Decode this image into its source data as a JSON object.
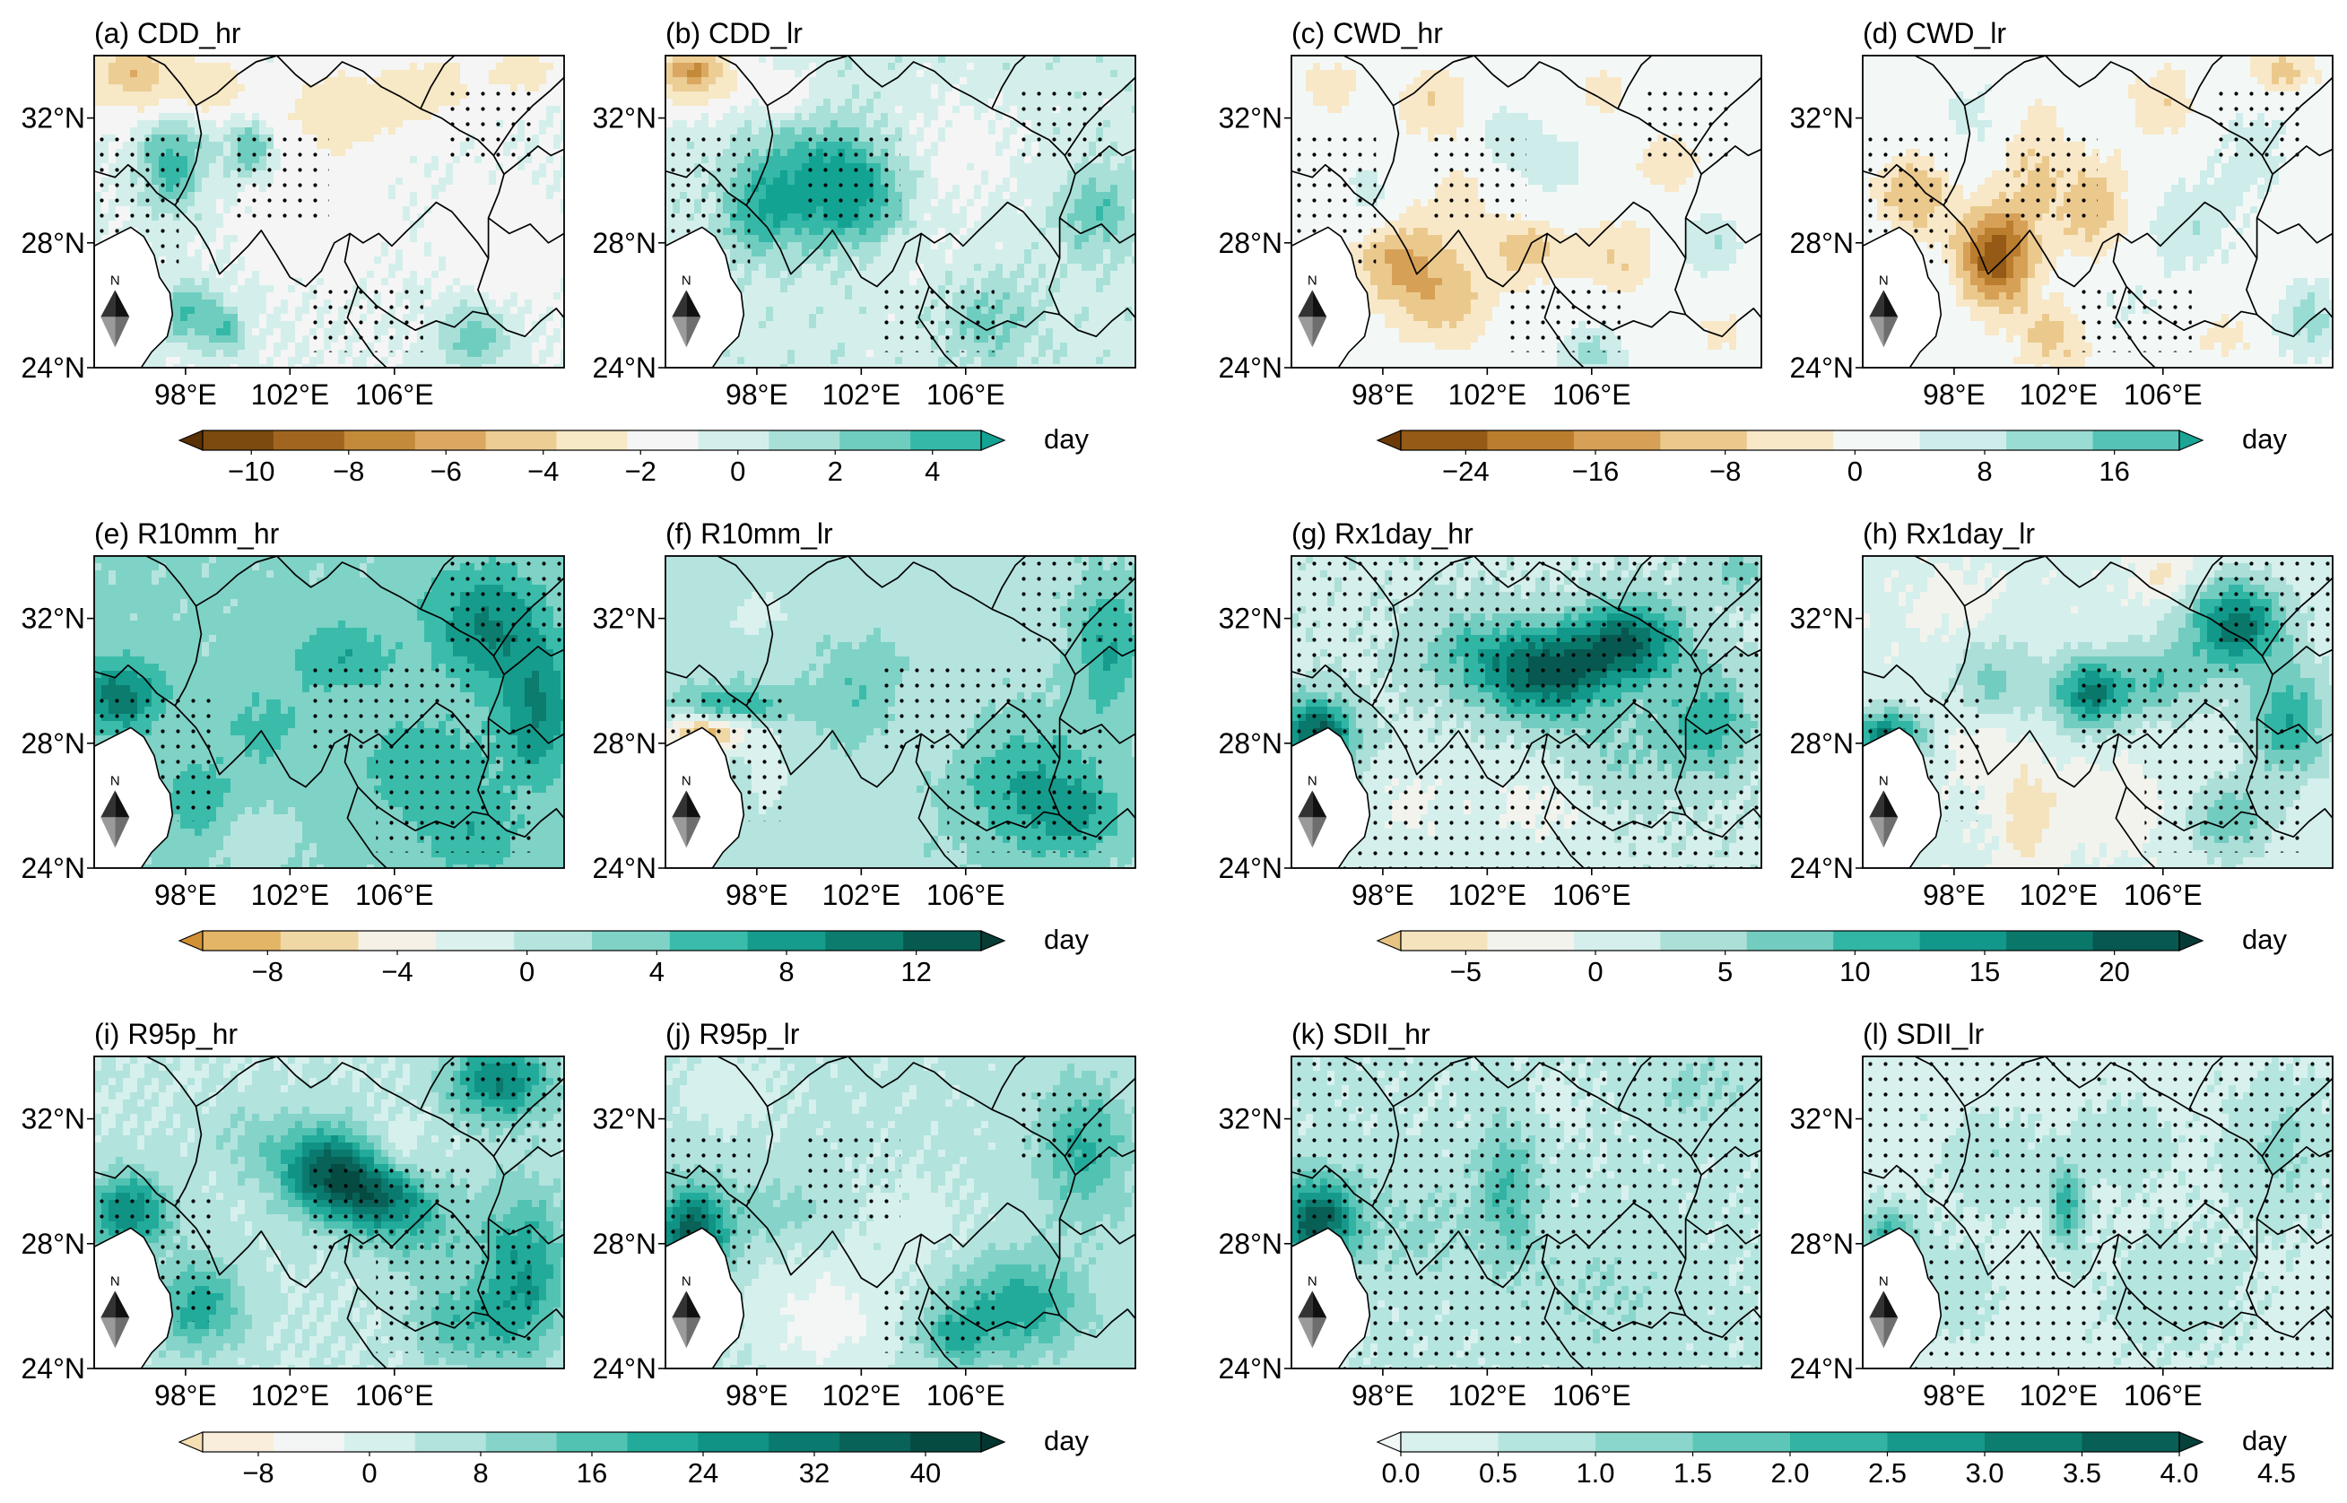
{
  "figure": {
    "panels": [
      {
        "id": "a",
        "title": "(a) CDD_hr",
        "field": "cdd_hr"
      },
      {
        "id": "b",
        "title": "(b) CDD_lr",
        "field": "cdd_lr"
      },
      {
        "id": "c",
        "title": "(c) CWD_hr",
        "field": "cwd_hr"
      },
      {
        "id": "d",
        "title": "(d) CWD_lr",
        "field": "cwd_lr"
      },
      {
        "id": "e",
        "title": "(e) R10mm_hr",
        "field": "r10_hr"
      },
      {
        "id": "f",
        "title": "(f) R10mm_lr",
        "field": "r10_lr"
      },
      {
        "id": "g",
        "title": "(g) Rx1day_hr",
        "field": "rx1_hr"
      },
      {
        "id": "h",
        "title": "(h) Rx1day_lr",
        "field": "rx1_lr"
      },
      {
        "id": "i",
        "title": "(i) R95p_hr",
        "field": "r95_hr"
      },
      {
        "id": "j",
        "title": "(j) R95p_lr",
        "field": "r95_lr"
      },
      {
        "id": "k",
        "title": "(k) SDII_hr",
        "field": "sdii_hr"
      },
      {
        "id": "l",
        "title": "(l) SDII_lr",
        "field": "sdii_lr"
      }
    ],
    "lat_ticks": [
      "32°N",
      "28°N",
      "24°N"
    ],
    "lon_ticks": [
      "98°E",
      "102°E",
      "106°E"
    ],
    "north_arrow_label": "N",
    "colorbars": [
      {
        "id": "cdd",
        "unit": "day",
        "labels": [
          "−10",
          "−8",
          "−6",
          "−4",
          "−2",
          "0",
          "2",
          "4"
        ],
        "colors": [
          "#5a3005",
          "#7c4a0e",
          "#a1651f",
          "#c38a3a",
          "#dba862",
          "#eccd94",
          "#f7e8c6",
          "#f5f5f5",
          "#d4efeb",
          "#a8e0d8",
          "#6fcdc0",
          "#35b8a8",
          "#12a393"
        ]
      },
      {
        "id": "cwd",
        "unit": "day",
        "labels": [
          "−24",
          "−16",
          "−8",
          "0",
          "8",
          "16"
        ],
        "colors": [
          "#6b3a08",
          "#955a16",
          "#bb7d2e",
          "#d7a057",
          "#ebc98d",
          "#f8e8c8",
          "#f3f8f7",
          "#cdecea",
          "#98dcd3",
          "#55c3b6",
          "#1aa595"
        ]
      },
      {
        "id": "r10",
        "unit": "day",
        "labels": [
          "−8",
          "−4",
          "0",
          "4",
          "8",
          "12"
        ],
        "colors": [
          "#d29035",
          "#e3b567",
          "#f0d8a5",
          "#f5f1e6",
          "#daf1ee",
          "#b5e4de",
          "#7fd2c6",
          "#3bbcab",
          "#169c8c",
          "#0b7c6e",
          "#075a50",
          "#073d35"
        ]
      },
      {
        "id": "rx1",
        "unit": "day",
        "labels": [
          "−5",
          "0",
          "5",
          "10",
          "15",
          "20"
        ],
        "colors": [
          "#e8c482",
          "#f5e3bd",
          "#f3f3ee",
          "#d5efec",
          "#acdfd8",
          "#73ccc0",
          "#31b5a4",
          "#12988a",
          "#0a776b",
          "#075850",
          "#063b35"
        ]
      },
      {
        "id": "r95",
        "unit": "day",
        "labels": [
          "−8",
          "0",
          "8",
          "16",
          "24",
          "32",
          "40"
        ],
        "colors": [
          "#f5dfb3",
          "#f8eedb",
          "#f3f6f5",
          "#d6f0ed",
          "#b2e3dd",
          "#86d4c9",
          "#52c2b3",
          "#22ab9b",
          "#109285",
          "#0b7a6e",
          "#086257",
          "#064b42",
          "#043630"
        ]
      },
      {
        "id": "sdii",
        "unit": "day",
        "labels": [
          "0.0",
          "0.5",
          "1.0",
          "1.5",
          "2.0",
          "2.5",
          "3.0",
          "3.5",
          "4.0",
          "4.5"
        ],
        "colors": [
          "#f1f8f7",
          "#d8f1ee",
          "#b5e5df",
          "#8bd6cc",
          "#5ec6b8",
          "#32b3a3",
          "#16998a",
          "#0d7d70",
          "#085f55",
          "#05423b"
        ]
      }
    ]
  }
}
